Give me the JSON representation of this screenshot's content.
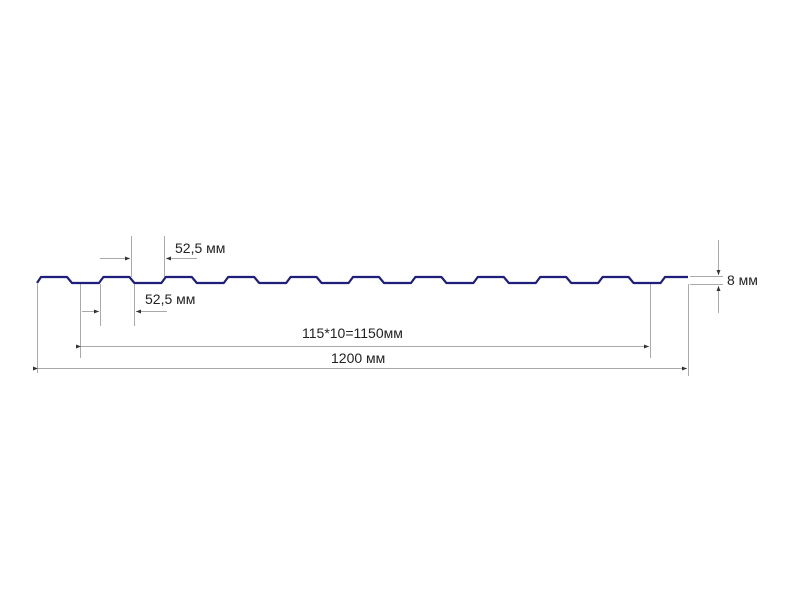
{
  "labels": {
    "crest_width": "52,5 мм",
    "trough_width": "52,5 мм",
    "height": "8 мм",
    "working_width": "115*10=1150мм",
    "total_width": "1200 мм"
  },
  "colors": {
    "profile": "#1f1f7a",
    "dimension": "#999999",
    "text": "#222222"
  }
}
